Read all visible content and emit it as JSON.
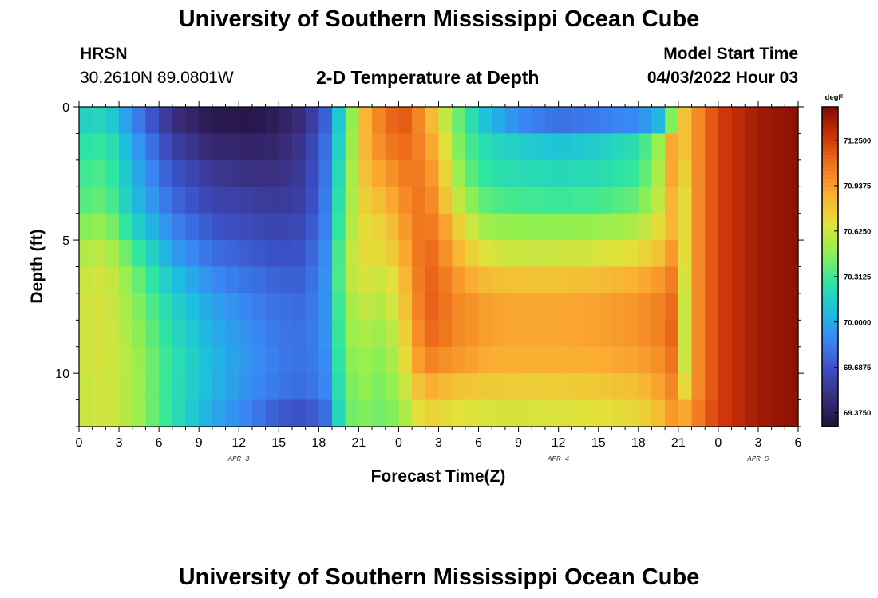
{
  "header": {
    "title": "University of Southern Mississippi Ocean Cube",
    "station": "HRSN",
    "coords": "30.2610N  89.0801W",
    "subtitle": "2-D Temperature at Depth",
    "model_label": "Model Start Time",
    "model_time": "04/03/2022 Hour 03"
  },
  "footer": {
    "title": "University of Southern Mississippi Ocean Cube"
  },
  "chart_data": {
    "type": "heatmap",
    "title": "2-D Temperature at Depth",
    "xlabel": "Forecast Time(Z)",
    "ylabel": "Depth (ft)",
    "x_range_hours": [
      0,
      54
    ],
    "y_range_ft": [
      0,
      12
    ],
    "y_reversed": true,
    "x_tick_hours": [
      0,
      3,
      6,
      9,
      12,
      15,
      18,
      21,
      24,
      27,
      30,
      33,
      36,
      39,
      42,
      45,
      48,
      51,
      54
    ],
    "x_tick_labels": [
      "0",
      "3",
      "6",
      "9",
      "12",
      "15",
      "18",
      "21",
      "0",
      "3",
      "6",
      "9",
      "12",
      "15",
      "18",
      "21",
      "0",
      "3",
      "6"
    ],
    "y_ticks": [
      0,
      5,
      10
    ],
    "y_tick_labels": [
      "0",
      "5",
      "10"
    ],
    "date_labels": [
      {
        "hour": 12,
        "label": "APR 3"
      },
      {
        "hour": 36,
        "label": "APR 4"
      },
      {
        "hour": 51,
        "label": "APR 5"
      }
    ],
    "colorbar": {
      "unit": "degF",
      "min": 69.28,
      "max": 71.48,
      "tick_values": [
        71.25,
        70.9375,
        70.625,
        70.3125,
        70.0,
        69.6875,
        69.375
      ],
      "tick_labels": [
        "71.2500",
        "70.9375",
        "70.6250",
        "70.3125",
        "70.0000",
        "69.6875",
        "69.3750"
      ],
      "colors": [
        "#20103a",
        "#3a2c7a",
        "#3b4fc4",
        "#3a86f5",
        "#1cc0de",
        "#2fe6a0",
        "#90f050",
        "#e3e13a",
        "#fbae32",
        "#f0731e",
        "#cf3408",
        "#7f0b03"
      ]
    },
    "depth_levels_ft": [
      0.5,
      1.5,
      2.5,
      3.5,
      4.5,
      5.5,
      6.5,
      7.5,
      8.5,
      9.5,
      10.5,
      11.5
    ],
    "time_keyframes_hours": [
      0,
      2,
      4,
      7,
      10,
      13,
      15,
      17,
      18.5,
      20,
      21.5,
      23,
      24.5,
      26,
      27,
      28.5,
      30,
      31,
      33,
      36,
      39,
      42,
      43.5,
      44.5,
      45.5,
      46.5,
      48,
      51,
      54
    ],
    "temperature_degF": [
      [
        70.15,
        70.2,
        69.9,
        69.5,
        69.35,
        69.33,
        69.4,
        69.5,
        69.75,
        70.3,
        70.85,
        71.1,
        71.15,
        70.95,
        70.7,
        70.4,
        70.15,
        70.05,
        69.9,
        69.8,
        69.85,
        69.9,
        70.05,
        70.45,
        70.8,
        71.0,
        71.25,
        71.4,
        71.45
      ],
      [
        70.25,
        70.3,
        70.0,
        69.6,
        69.45,
        69.42,
        69.45,
        69.55,
        69.8,
        70.35,
        70.85,
        71.05,
        71.1,
        71.0,
        70.8,
        70.45,
        70.25,
        70.2,
        70.15,
        70.1,
        70.15,
        70.25,
        70.5,
        70.9,
        70.8,
        71.0,
        71.25,
        71.4,
        71.45
      ],
      [
        70.3,
        70.35,
        70.05,
        69.7,
        69.55,
        69.5,
        69.5,
        69.58,
        69.82,
        70.4,
        70.8,
        70.95,
        71.05,
        71.05,
        70.85,
        70.5,
        70.3,
        70.25,
        70.22,
        70.2,
        70.22,
        70.3,
        70.55,
        70.9,
        70.75,
        71.0,
        71.25,
        71.4,
        71.45
      ],
      [
        70.35,
        70.4,
        70.1,
        69.78,
        69.62,
        69.58,
        69.56,
        69.6,
        69.84,
        70.45,
        70.75,
        70.85,
        71.0,
        71.1,
        70.9,
        70.6,
        70.4,
        70.35,
        70.32,
        70.3,
        70.32,
        70.4,
        70.6,
        70.85,
        70.7,
        71.0,
        71.25,
        71.4,
        71.45
      ],
      [
        70.45,
        70.5,
        70.2,
        69.88,
        69.7,
        69.65,
        69.62,
        69.65,
        69.86,
        70.5,
        70.7,
        70.75,
        70.95,
        71.12,
        71.0,
        70.75,
        70.55,
        70.5,
        70.48,
        70.48,
        70.5,
        70.55,
        70.7,
        70.85,
        70.7,
        71.0,
        71.25,
        71.4,
        71.45
      ],
      [
        70.55,
        70.6,
        70.35,
        69.98,
        69.8,
        69.72,
        69.68,
        69.7,
        69.9,
        70.55,
        70.7,
        70.7,
        70.9,
        71.15,
        71.05,
        70.85,
        70.7,
        70.65,
        70.62,
        70.62,
        70.65,
        70.7,
        70.8,
        70.95,
        70.7,
        71.0,
        71.25,
        71.4,
        71.45
      ],
      [
        70.6,
        70.65,
        70.45,
        70.1,
        69.9,
        69.8,
        69.75,
        69.75,
        69.92,
        70.55,
        70.65,
        70.6,
        70.85,
        71.15,
        71.1,
        70.95,
        70.85,
        70.82,
        70.8,
        70.8,
        70.82,
        70.88,
        70.95,
        71.05,
        70.65,
        71.0,
        71.25,
        71.4,
        71.45
      ],
      [
        70.62,
        70.66,
        70.5,
        70.18,
        69.98,
        69.86,
        69.8,
        69.78,
        69.92,
        70.5,
        70.6,
        70.55,
        70.8,
        71.15,
        71.12,
        71.0,
        70.95,
        70.92,
        70.9,
        70.9,
        70.92,
        70.97,
        71.03,
        71.1,
        70.62,
        71.0,
        71.25,
        71.4,
        71.45
      ],
      [
        70.62,
        70.66,
        70.52,
        70.22,
        70.02,
        69.9,
        69.82,
        69.8,
        69.92,
        70.48,
        70.55,
        70.5,
        70.75,
        71.12,
        71.1,
        71.0,
        70.95,
        70.92,
        70.9,
        70.9,
        70.92,
        70.97,
        71.03,
        71.12,
        70.62,
        71.0,
        71.25,
        71.4,
        71.45
      ],
      [
        70.62,
        70.66,
        70.55,
        70.26,
        70.05,
        69.92,
        69.84,
        69.8,
        69.9,
        70.45,
        70.5,
        70.45,
        70.7,
        71.05,
        71.0,
        70.95,
        70.9,
        70.88,
        70.87,
        70.87,
        70.88,
        70.92,
        70.98,
        71.08,
        70.62,
        71.0,
        71.25,
        71.4,
        71.45
      ],
      [
        70.6,
        70.65,
        70.55,
        70.25,
        70.05,
        69.9,
        69.82,
        69.78,
        69.88,
        70.42,
        70.48,
        70.42,
        70.62,
        70.9,
        70.85,
        70.8,
        70.78,
        70.77,
        70.76,
        70.76,
        70.78,
        70.82,
        70.92,
        71.02,
        70.72,
        71.0,
        71.25,
        71.4,
        71.45
      ],
      [
        70.6,
        70.65,
        70.55,
        70.25,
        70.0,
        69.85,
        69.72,
        69.68,
        69.8,
        70.4,
        70.45,
        70.4,
        70.55,
        70.75,
        70.72,
        70.68,
        70.66,
        70.65,
        70.65,
        70.66,
        70.68,
        70.72,
        70.82,
        70.95,
        70.9,
        71.05,
        71.25,
        71.4,
        71.45
      ]
    ]
  }
}
